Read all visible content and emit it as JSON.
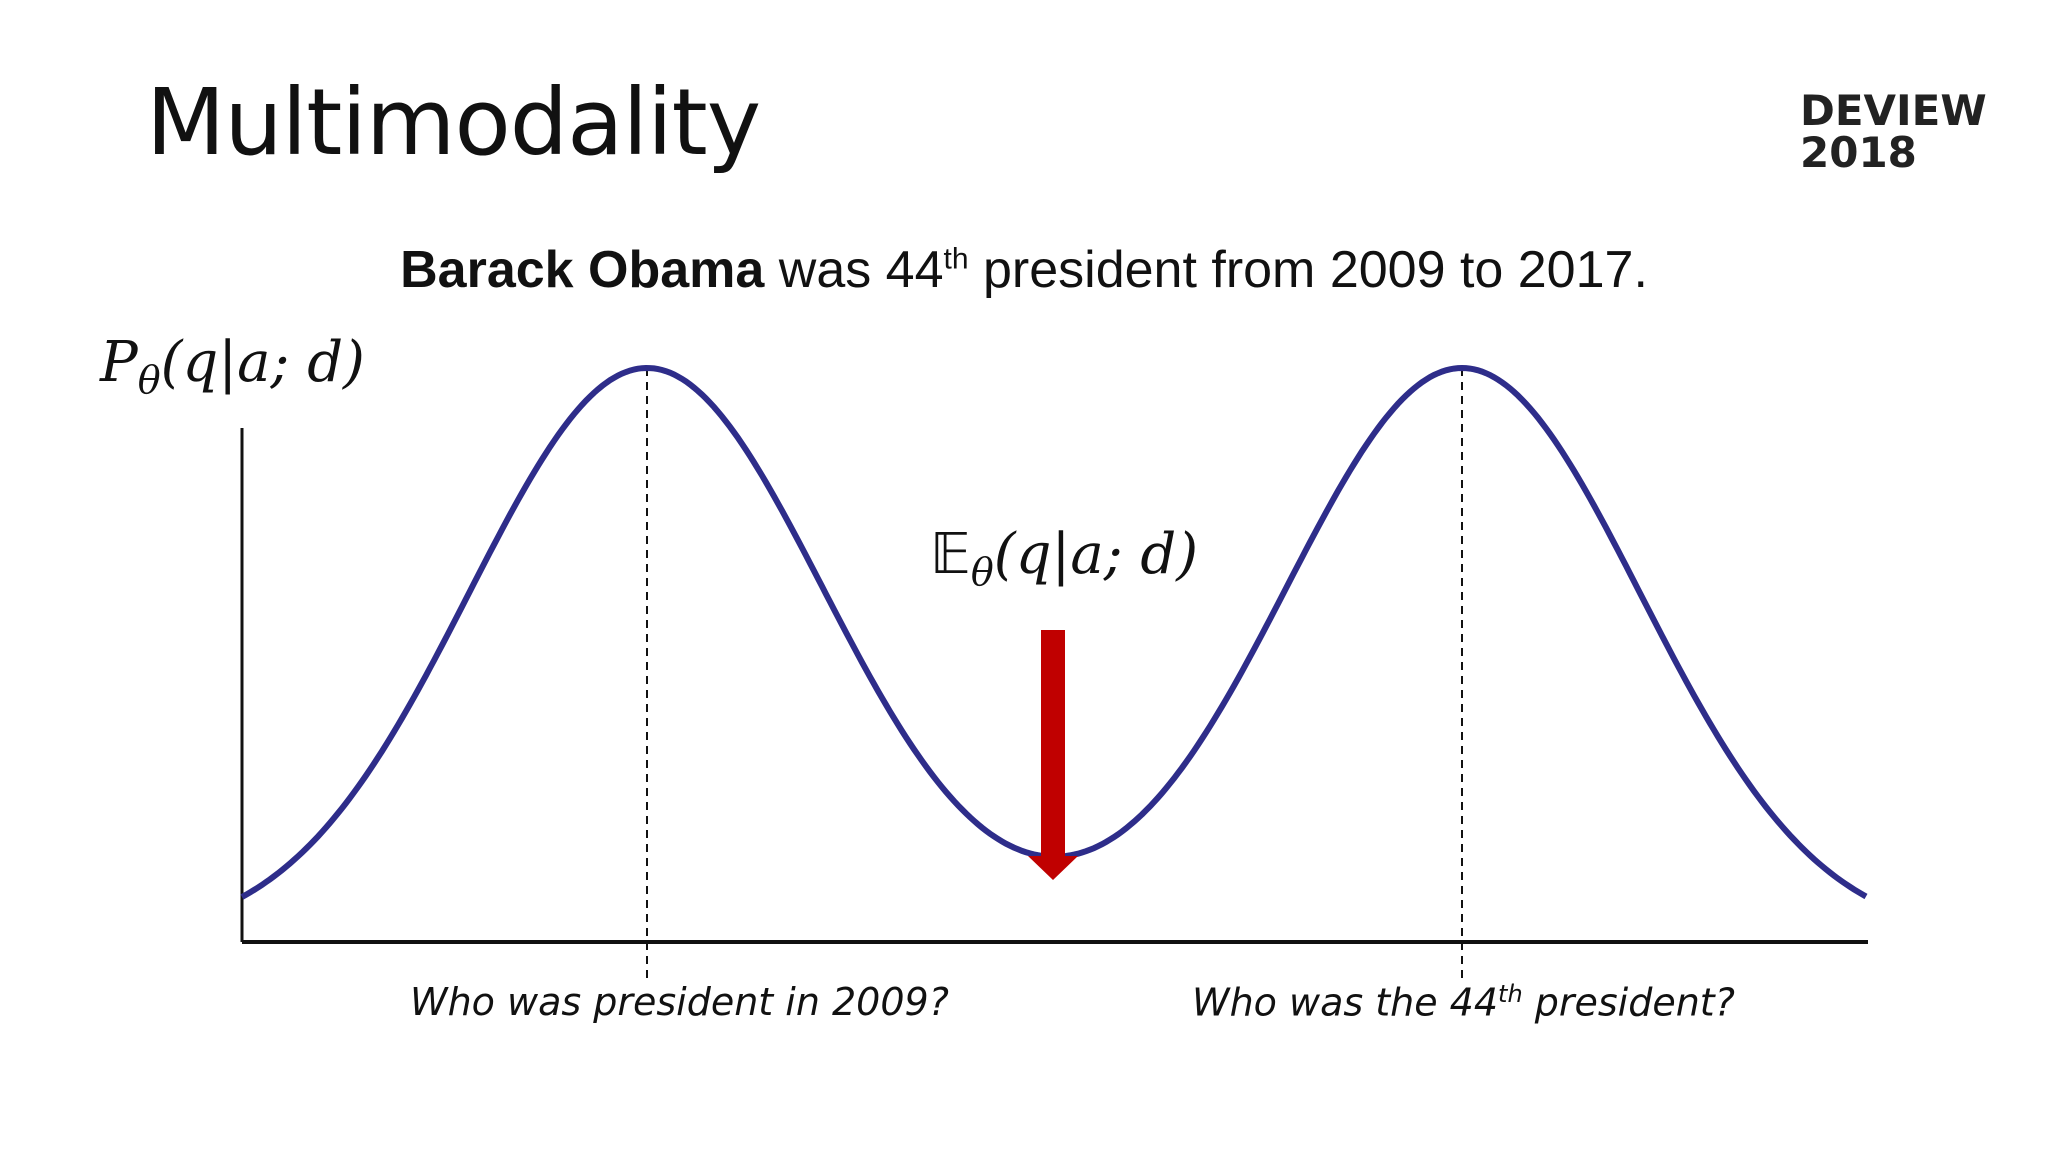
{
  "slide": {
    "title": "Multimodality",
    "logo_line1": "DEVIEW",
    "logo_line2": "2018"
  },
  "sentence": {
    "bold": "Barack Obama",
    "pre": " was 44",
    "sup": "th",
    "post": " president from 2009 to 2017."
  },
  "labels": {
    "y_main": "P",
    "y_sub": "θ",
    "y_args": "(q|a; d)",
    "e_main": "𝔼",
    "e_sub": "θ",
    "e_args": "(q|a; d)",
    "x_left": "Who was president in 2009?",
    "x_right_pre": "Who was the 44",
    "x_right_sup": "th",
    "x_right_post": " president?"
  },
  "colors": {
    "curve": "#2e2d8a",
    "arrow": "#c00000",
    "axis": "#111111"
  }
}
